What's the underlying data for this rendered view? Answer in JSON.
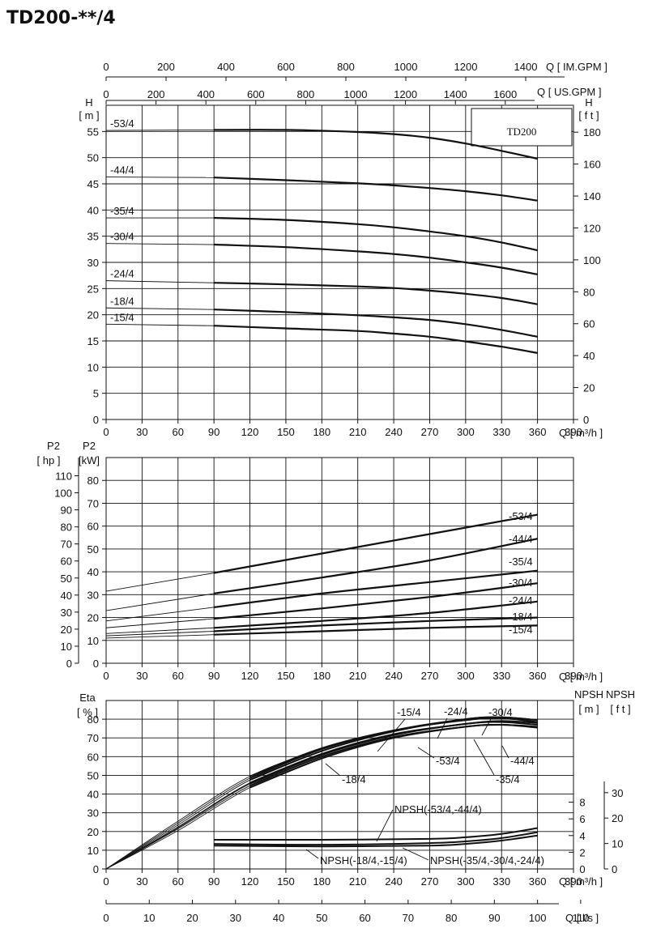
{
  "title": "TD200-**/4",
  "colors": {
    "ink": "#111111",
    "grid": "#222222",
    "background": "#ffffff"
  },
  "top_axes": {
    "im_gpm": {
      "label": "Q  [ IM.GPM ]",
      "ticks": [
        "0",
        "200",
        "400",
        "600",
        "800",
        "1000",
        "1200",
        "1400"
      ]
    },
    "us_gpm": {
      "label": "Q  [ US.GPM ]",
      "ticks": [
        "0",
        "200",
        "400",
        "600",
        "800",
        "1000",
        "1200",
        "1400",
        "1600"
      ]
    }
  },
  "bottom_axis": {
    "label": "Q  [ l/s ]",
    "ticks": [
      "0",
      "10",
      "20",
      "30",
      "40",
      "50",
      "60",
      "70",
      "80",
      "90",
      "100",
      "110"
    ]
  },
  "chart_data": [
    {
      "id": "head",
      "type": "line",
      "model_label": "TD200",
      "xlabel": "Q  [ m³/h ]",
      "xlim": [
        0,
        390
      ],
      "x_ticks": [
        0,
        30,
        60,
        90,
        120,
        150,
        180,
        210,
        240,
        270,
        300,
        330,
        360,
        390
      ],
      "ylabel_left": [
        "H",
        "[ m ]"
      ],
      "ylim": [
        0,
        60
      ],
      "y_ticks_left": [
        0,
        5,
        10,
        15,
        20,
        25,
        30,
        35,
        40,
        45,
        50,
        55
      ],
      "ylabel_right": [
        "H",
        "[ f t ]"
      ],
      "y_ticks_right": [
        0,
        20,
        40,
        60,
        80,
        100,
        120,
        140,
        160,
        180
      ],
      "grid": true,
      "series": [
        {
          "name": "-53/4",
          "shutoff": 55.2,
          "x": [
            90,
            150,
            210,
            240,
            270,
            300,
            330,
            360
          ],
          "y": [
            55.3,
            55.3,
            54.9,
            54.5,
            53.8,
            52.7,
            51.3,
            49.8
          ]
        },
        {
          "name": "-44/4",
          "shutoff": 46.3,
          "x": [
            90,
            150,
            210,
            240,
            270,
            300,
            330,
            360
          ],
          "y": [
            46.2,
            45.7,
            45.1,
            44.7,
            44.2,
            43.6,
            42.8,
            41.8
          ]
        },
        {
          "name": "-35/4",
          "shutoff": 38.5,
          "x": [
            90,
            150,
            210,
            240,
            270,
            300,
            330,
            360
          ],
          "y": [
            38.5,
            38.1,
            37.3,
            36.7,
            35.9,
            35.0,
            33.8,
            32.3
          ]
        },
        {
          "name": "-30/4",
          "shutoff": 33.6,
          "x": [
            90,
            150,
            210,
            240,
            270,
            300,
            330,
            360
          ],
          "y": [
            33.4,
            32.9,
            32.1,
            31.6,
            30.9,
            30.0,
            29.0,
            27.7
          ]
        },
        {
          "name": "-24/4",
          "shutoff": 26.5,
          "x": [
            90,
            150,
            210,
            240,
            270,
            300,
            330,
            360
          ],
          "y": [
            26.1,
            25.8,
            25.4,
            25.1,
            24.6,
            24.0,
            23.2,
            22.0
          ]
        },
        {
          "name": "-18/4",
          "shutoff": 21.3,
          "x": [
            90,
            150,
            210,
            240,
            270,
            300,
            330,
            360
          ],
          "y": [
            21.0,
            20.5,
            19.9,
            19.5,
            19.0,
            18.2,
            17.1,
            15.8
          ]
        },
        {
          "name": "-15/4",
          "shutoff": 18.2,
          "x": [
            90,
            150,
            210,
            240,
            270,
            300,
            330,
            360
          ],
          "y": [
            17.9,
            17.4,
            16.9,
            16.4,
            15.8,
            14.9,
            13.9,
            12.7
          ]
        }
      ]
    },
    {
      "id": "power",
      "type": "line",
      "xlabel": "Q  [ m³/h ]",
      "xlim": [
        0,
        390
      ],
      "x_ticks": [
        0,
        30,
        60,
        90,
        120,
        150,
        180,
        210,
        240,
        270,
        300,
        330,
        360,
        390
      ],
      "ylabel_left": [
        "P2",
        "[ hp ]"
      ],
      "y_ticks_hp": [
        0,
        10,
        20,
        30,
        40,
        50,
        60,
        70,
        80,
        90,
        100,
        110
      ],
      "ylabel_mid": [
        "P2",
        "[kW]"
      ],
      "ylim": [
        0,
        90
      ],
      "y_ticks_kw": [
        0,
        10,
        20,
        30,
        40,
        50,
        60,
        70,
        80
      ],
      "grid": true,
      "series": [
        {
          "name": "-53/4",
          "x": [
            0,
            90,
            180,
            270,
            360
          ],
          "y": [
            31.5,
            39.5,
            48.0,
            56.5,
            65.0
          ]
        },
        {
          "name": "-44/4",
          "x": [
            0,
            90,
            180,
            270,
            360
          ],
          "y": [
            23.0,
            30.5,
            37.5,
            45.0,
            54.5
          ]
        },
        {
          "name": "-35/4",
          "x": [
            0,
            90,
            180,
            270,
            360
          ],
          "y": [
            18.5,
            24.5,
            30.5,
            35.5,
            40.5
          ]
        },
        {
          "name": "-30/4",
          "x": [
            0,
            90,
            180,
            270,
            360
          ],
          "y": [
            15.5,
            19.5,
            24.0,
            29.0,
            35.0
          ]
        },
        {
          "name": "-24/4",
          "x": [
            0,
            90,
            180,
            270,
            360
          ],
          "y": [
            13.0,
            15.5,
            18.5,
            22.0,
            27.0
          ]
        },
        {
          "name": "-18/4",
          "x": [
            0,
            90,
            180,
            270,
            360
          ],
          "y": [
            12.0,
            14.0,
            16.5,
            18.5,
            20.0
          ]
        },
        {
          "name": "-15/4",
          "x": [
            0,
            90,
            180,
            270,
            360
          ],
          "y": [
            11.0,
            12.5,
            14.0,
            15.5,
            16.5
          ]
        }
      ]
    },
    {
      "id": "efficiency",
      "type": "line",
      "xlabel": "Q  [ m³/h ]",
      "xlim": [
        0,
        390
      ],
      "x_ticks": [
        0,
        30,
        60,
        90,
        120,
        150,
        180,
        210,
        240,
        270,
        300,
        330,
        360,
        390
      ],
      "ylabel_left": [
        "Eta",
        "[ % ]"
      ],
      "ylim": [
        0,
        90
      ],
      "y_ticks_eta": [
        0,
        10,
        20,
        30,
        40,
        50,
        60,
        70,
        80
      ],
      "npsh_m": {
        "label": [
          "NPSH",
          "[ m ]"
        ],
        "ticks": [
          0,
          2,
          4,
          6,
          8
        ]
      },
      "npsh_ft": {
        "label": [
          "NPSH",
          "[ f t ]"
        ],
        "ticks": [
          0,
          10,
          20,
          30
        ]
      },
      "grid": true,
      "series": [
        {
          "name": "-15/4",
          "x": [
            0,
            60,
            120,
            180,
            240,
            300,
            330,
            360
          ],
          "y": [
            0,
            25.5,
            49.5,
            64.5,
            74.0,
            79.5,
            80.5,
            78.5
          ]
        },
        {
          "name": "-24/4",
          "x": [
            0,
            60,
            120,
            180,
            240,
            300,
            330,
            360
          ],
          "y": [
            0,
            24.5,
            48.5,
            64.0,
            74.0,
            80.0,
            81.0,
            79.5
          ]
        },
        {
          "name": "-30/4",
          "x": [
            0,
            60,
            120,
            180,
            240,
            300,
            330,
            360
          ],
          "y": [
            0,
            23.5,
            47.5,
            63.0,
            73.5,
            80.0,
            81.0,
            79.5
          ]
        },
        {
          "name": "-53/4",
          "x": [
            0,
            60,
            120,
            180,
            240,
            300,
            330,
            360
          ],
          "y": [
            0,
            22.5,
            46.0,
            61.5,
            72.0,
            77.5,
            79.0,
            78.0
          ]
        },
        {
          "name": "-44/4",
          "x": [
            0,
            60,
            120,
            180,
            240,
            300,
            330,
            360
          ],
          "y": [
            0,
            22.0,
            45.5,
            61.0,
            71.5,
            77.5,
            78.5,
            77.0
          ]
        },
        {
          "name": "-35/4",
          "x": [
            0,
            60,
            120,
            180,
            240,
            300,
            330,
            360
          ],
          "y": [
            0,
            21.5,
            44.5,
            60.0,
            70.5,
            76.0,
            77.0,
            76.0
          ]
        },
        {
          "name": "-18/4",
          "x": [
            0,
            60,
            120,
            180,
            240,
            300,
            330,
            360
          ],
          "y": [
            0,
            20.5,
            43.5,
            59.0,
            70.0,
            76.0,
            77.0,
            75.5
          ]
        }
      ],
      "npsh_series": [
        {
          "name": "NPSH(-53/4,-44/4)",
          "x": [
            90,
            180,
            270,
            300,
            330,
            360
          ],
          "y_m": [
            3.5,
            3.5,
            3.6,
            3.8,
            4.2,
            4.9
          ]
        },
        {
          "name": "NPSH(-35/4,-30/4,-24/4)",
          "x": [
            90,
            180,
            270,
            300,
            330,
            360
          ],
          "y_m": [
            3.0,
            2.9,
            3.1,
            3.3,
            3.7,
            4.4
          ]
        },
        {
          "name": "NPSH(-18/4,-15/4)",
          "x": [
            90,
            180,
            270,
            300,
            330,
            360
          ],
          "y_m": [
            2.8,
            2.7,
            2.8,
            3.0,
            3.4,
            4.0
          ]
        }
      ]
    }
  ]
}
